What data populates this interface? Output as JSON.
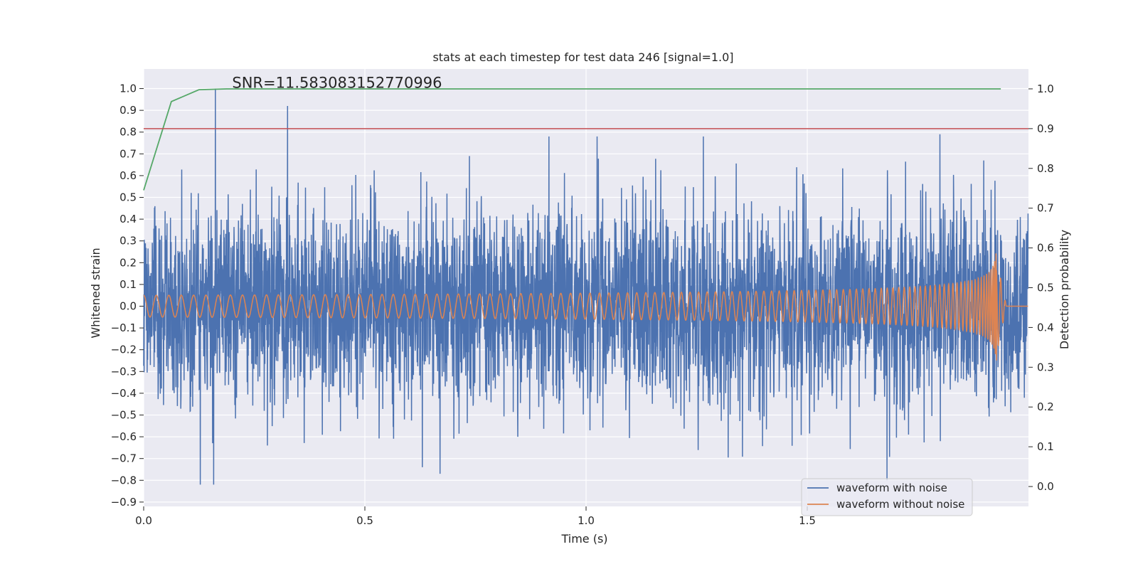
{
  "chart_data": {
    "type": "line",
    "title": "stats at each timestep for test data 246 [signal=1.0]",
    "xlabel": "Time (s)",
    "ylabel": "Whitened strain",
    "ylabel_right": "Detection probability",
    "xlim": [
      0.0,
      2.0
    ],
    "ylim": [
      -0.92,
      1.09
    ],
    "ylim_right": [
      -0.05,
      1.05
    ],
    "x_ticks": [
      0.0,
      0.5,
      1.0,
      1.5
    ],
    "x_tick_labels": [
      "0.0",
      "0.5",
      "1.0",
      "1.5"
    ],
    "y_ticks": [
      1.0,
      0.9,
      0.8,
      0.7,
      0.6,
      0.5,
      0.4,
      0.3,
      0.2,
      0.1,
      0.0,
      -0.1,
      -0.2,
      -0.3,
      -0.4,
      -0.5,
      -0.6,
      -0.7,
      -0.8,
      -0.9
    ],
    "y_tick_labels": [
      "1.0",
      "0.9",
      "0.8",
      "0.7",
      "0.6",
      "0.5",
      "0.4",
      "0.3",
      "0.2",
      "0.1",
      "0.0",
      "−0.1",
      "−0.2",
      "−0.3",
      "−0.4",
      "−0.5",
      "−0.6",
      "−0.7",
      "−0.8",
      "−0.9"
    ],
    "y_right_ticks": [
      1.0,
      0.9,
      0.8,
      0.7,
      0.6,
      0.5,
      0.4,
      0.3,
      0.2,
      0.1,
      0.0
    ],
    "y_right_tick_labels": [
      "1.0",
      "0.9",
      "0.8",
      "0.7",
      "0.6",
      "0.5",
      "0.4",
      "0.3",
      "0.2",
      "0.1",
      "0.0"
    ],
    "grid": true,
    "background": "#eaeaf2",
    "annotation": {
      "text": "SNR=11.583083152770996",
      "x": 0.2,
      "y": 1.0
    },
    "threshold_line": {
      "axis": "right",
      "y": 0.9,
      "color": "#c44e52"
    },
    "series": [
      {
        "name": "waveform with noise",
        "axis": "left",
        "color": "#4c72b0",
        "description_values": "dense random noise, sample rate ~2048 Hz",
        "amplitude_std": 0.22,
        "notable_points": [
          [
            0.162,
            1.0
          ],
          [
            0.158,
            -0.82
          ],
          [
            0.128,
            -0.82
          ],
          [
            0.325,
            0.92
          ],
          [
            0.63,
            -0.74
          ],
          [
            0.67,
            -0.77
          ],
          [
            1.68,
            -0.8
          ],
          [
            1.8,
            0.79
          ]
        ]
      },
      {
        "name": "waveform without noise",
        "axis": "left",
        "color": "#dd8452",
        "chirp": {
          "start_freq_hz": 35,
          "end_time": 1.93,
          "start_amplitude": 0.05,
          "peak_amplitude": 0.25,
          "flat_value_after_merger": 0.0
        }
      },
      {
        "name": "detection probability",
        "axis": "right",
        "color": "#55a868",
        "x": [
          0.0,
          0.0625,
          0.125,
          0.1875,
          0.25,
          0.5,
          1.0,
          1.5,
          1.9375
        ],
        "y": [
          0.745,
          0.968,
          0.998,
          1.0,
          1.0,
          1.0,
          1.0,
          1.0,
          1.0
        ]
      }
    ],
    "legend": {
      "position": "lower right",
      "entries": [
        "waveform with noise",
        "waveform without noise"
      ]
    }
  }
}
